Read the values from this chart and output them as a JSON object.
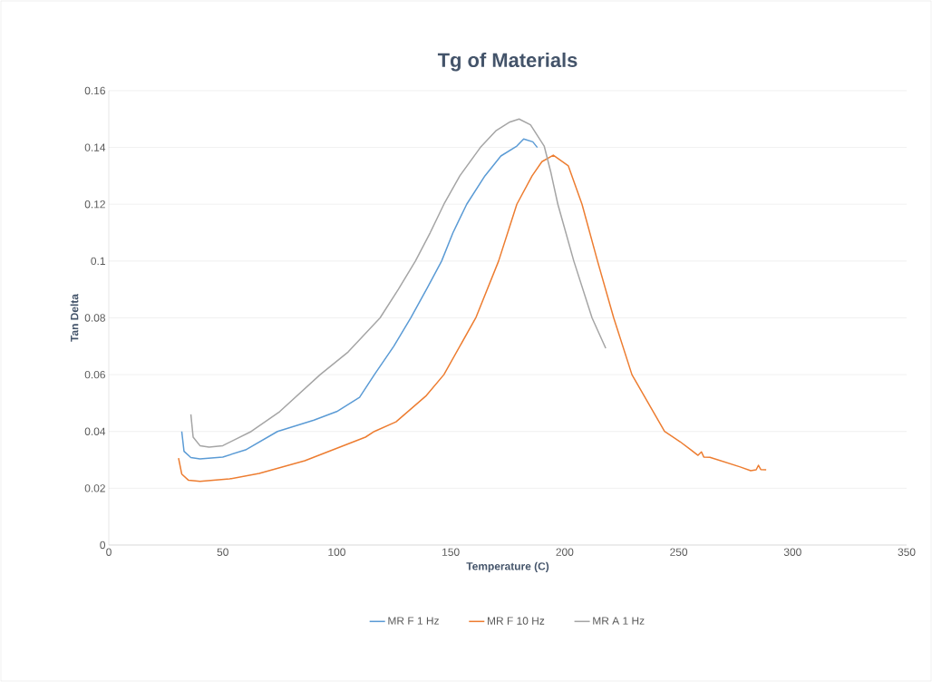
{
  "chart_data": {
    "type": "line",
    "title": "Tg of Materials",
    "xlabel": "Temperature (C)",
    "ylabel": "Tan Delta",
    "xlim": [
      0,
      350
    ],
    "xticks": [
      0,
      50,
      100,
      150,
      200,
      250,
      300,
      350
    ],
    "ylim": [
      0,
      0.16
    ],
    "yticks": [
      0,
      0.02,
      0.04,
      0.06,
      0.08,
      0.1,
      0.12,
      0.14,
      0.16
    ],
    "grid": "y",
    "legend": "bottom",
    "marker": "none",
    "line_style": "solid",
    "series": [
      {
        "name": "MR F 1 Hz",
        "color": "#5b9bd5",
        "x": [
          32,
          33,
          36,
          40,
          50,
          60,
          74,
          90,
          100,
          110,
          116.5,
          125,
          132.5,
          140,
          146,
          151,
          157,
          165,
          172,
          179,
          182,
          186,
          188
        ],
        "values": [
          0.04,
          0.033,
          0.0308,
          0.0303,
          0.031,
          0.0335,
          0.04,
          0.044,
          0.047,
          0.052,
          0.06,
          0.07,
          0.08,
          0.091,
          0.1,
          0.11,
          0.12,
          0.13,
          0.137,
          0.1405,
          0.143,
          0.142,
          0.14
        ]
      },
      {
        "name": "MR F 10 Hz",
        "color": "#ed7d31",
        "x": [
          30.6,
          32,
          35,
          40,
          53,
          66,
          86,
          112.6,
          116.5,
          126,
          139,
          147,
          161,
          171,
          179,
          185.7,
          190,
          195,
          201.6,
          207.6,
          214.4,
          221.5,
          229.5,
          243.8,
          250.6,
          258.5,
          260,
          261,
          263.7,
          277,
          281.6,
          284,
          285,
          286,
          288.4
        ],
        "values": [
          0.0306,
          0.025,
          0.0228,
          0.0224,
          0.0233,
          0.0252,
          0.0297,
          0.038,
          0.04,
          0.0434,
          0.0524,
          0.06,
          0.08,
          0.1,
          0.12,
          0.13,
          0.135,
          0.1373,
          0.1335,
          0.12,
          0.1,
          0.08,
          0.06,
          0.04,
          0.0364,
          0.0316,
          0.0328,
          0.031,
          0.0309,
          0.0275,
          0.0262,
          0.0265,
          0.0281,
          0.0266,
          0.0265
        ]
      },
      {
        "name": "MR A 1 Hz",
        "color": "#a5a5a5",
        "x": [
          36,
          37,
          40,
          44,
          50,
          62.5,
          75,
          92.7,
          105,
          119,
          127,
          134.5,
          141,
          147,
          154,
          163,
          170,
          176,
          180,
          185,
          191,
          194,
          197,
          204,
          212,
          218
        ],
        "values": [
          0.046,
          0.038,
          0.035,
          0.0345,
          0.035,
          0.04,
          0.047,
          0.06,
          0.068,
          0.08,
          0.09,
          0.1,
          0.11,
          0.12,
          0.13,
          0.14,
          0.146,
          0.149,
          0.15,
          0.148,
          0.1405,
          0.131,
          0.12,
          0.1,
          0.08,
          0.0693
        ]
      }
    ]
  }
}
